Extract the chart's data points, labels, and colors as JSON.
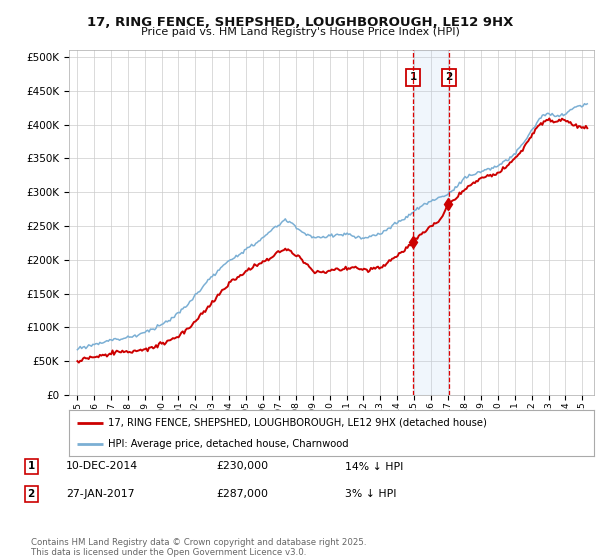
{
  "title_line1": "17, RING FENCE, SHEPSHED, LOUGHBOROUGH, LE12 9HX",
  "title_line2": "Price paid vs. HM Land Registry's House Price Index (HPI)",
  "bg_color": "#ffffff",
  "plot_bg_color": "#ffffff",
  "grid_color": "#cccccc",
  "red_line_color": "#cc0000",
  "blue_line_color": "#7bafd4",
  "blue_fill_color": "#ddeeff",
  "dashed_line_color": "#dd0000",
  "marker1_date_num": 2014.94,
  "marker2_date_num": 2017.07,
  "marker1_label": "1",
  "marker2_label": "2",
  "purchase1_date": "10-DEC-2014",
  "purchase1_price": "£230,000",
  "purchase1_hpi": "14% ↓ HPI",
  "purchase2_date": "27-JAN-2017",
  "purchase2_price": "£287,000",
  "purchase2_hpi": "3% ↓ HPI",
  "legend_red": "17, RING FENCE, SHEPSHED, LOUGHBOROUGH, LE12 9HX (detached house)",
  "legend_blue": "HPI: Average price, detached house, Charnwood",
  "footnote": "Contains HM Land Registry data © Crown copyright and database right 2025.\nThis data is licensed under the Open Government Licence v3.0.",
  "ylim_min": 0,
  "ylim_max": 510000,
  "xlim_min": 1994.5,
  "xlim_max": 2025.7
}
